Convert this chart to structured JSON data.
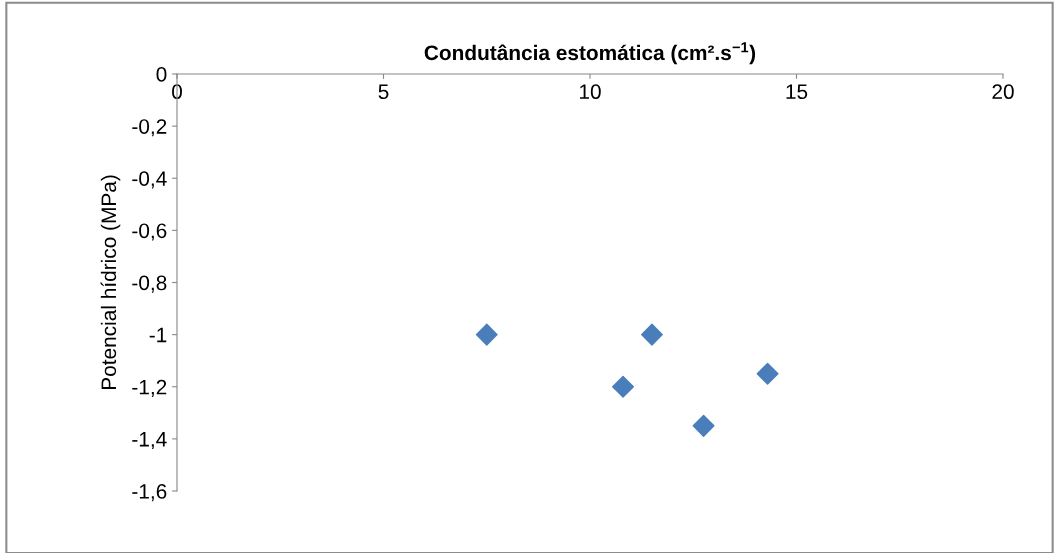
{
  "chart_data": {
    "type": "scatter",
    "xlabel": "Condutância estomática (cm².s$^{−1}$)",
    "ylabel": "Potencial hídrico (MPa)",
    "x": [
      7.5,
      10.8,
      11.5,
      12.75,
      14.3
    ],
    "series": [
      {
        "color": "#4a7ebb",
        "values": [
          -1.0,
          -1.2,
          -1.0,
          -1.35,
          -1.15
        ]
      }
    ],
    "xlim": [
      0,
      20
    ],
    "xticks": [
      0,
      5,
      10,
      15,
      20
    ],
    "ylim": [
      -1.6,
      0
    ],
    "yticks": [
      0,
      {
        "value": -0.2,
        "label": "-0,2"
      },
      {
        "value": -0.4,
        "label": "-0,4"
      },
      {
        "value": -0.6,
        "label": "-0,6"
      },
      {
        "value": -0.8,
        "label": "-0,8"
      },
      -1,
      {
        "value": -1.2,
        "label": "-1,2"
      },
      {
        "value": -1.4,
        "label": "-1,4"
      },
      {
        "value": -1.6,
        "label": "-1,6"
      }
    ],
    "marker": "diamond",
    "grid": false,
    "legend": false
  }
}
